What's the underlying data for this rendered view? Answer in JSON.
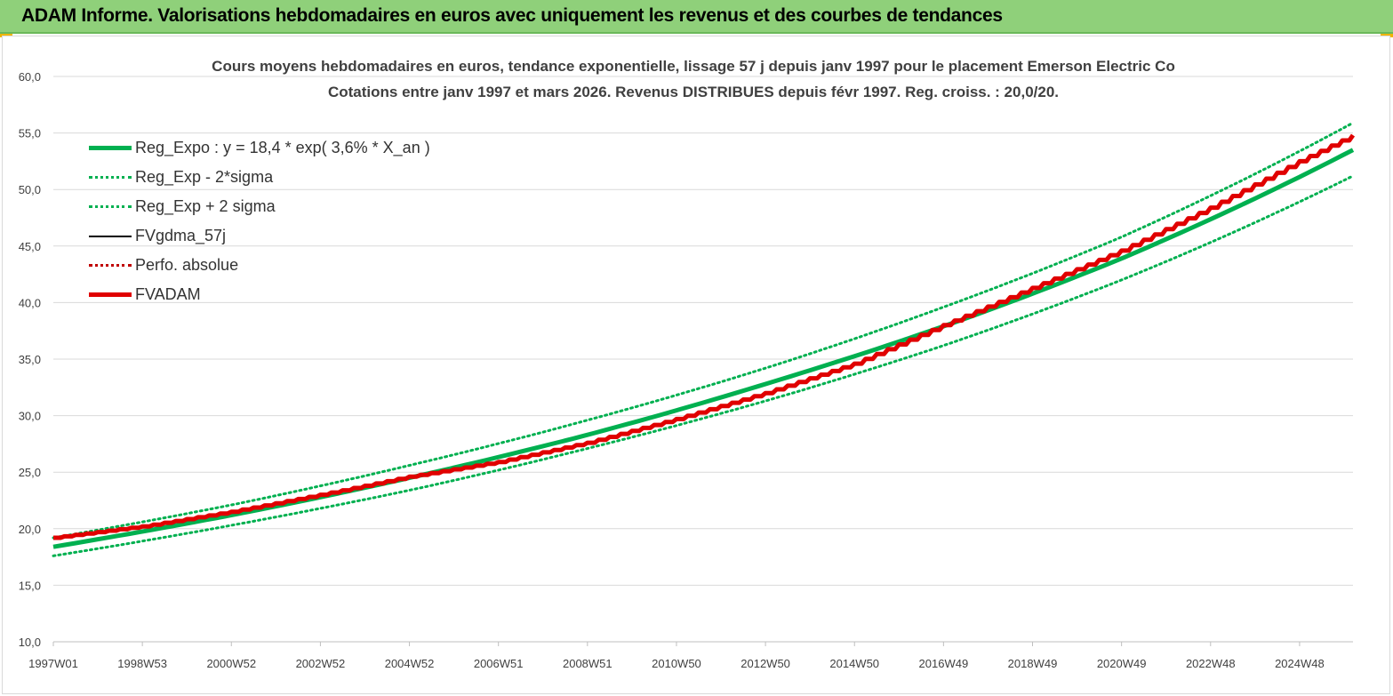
{
  "header": {
    "title": "ADAM Informe. Valorisations hebdomadaires en euros avec uniquement les revenus et des courbes de tendances"
  },
  "chart_data": {
    "type": "line",
    "title_line1": "Cours moyens hebdomadaires en euros, tendance exponentielle, lissage 57 j depuis janv 1997 pour le placement Emerson Electric Co",
    "title_line2": "Cotations entre janv 1997 et mars 2026. Revenus DISTRIBUES depuis févr 1997. Reg. croiss. : 20,0/20.",
    "ylim": [
      10,
      60
    ],
    "y_ticks": [
      "10,0",
      "15,0",
      "20,0",
      "25,0",
      "30,0",
      "35,0",
      "40,0",
      "45,0",
      "50,0",
      "55,0",
      "60,0"
    ],
    "x_range_years": [
      1997.0,
      2026.2
    ],
    "x_ticks": [
      {
        "label": "1997W01",
        "year": 1997.0
      },
      {
        "label": "1998W53",
        "year": 1999.0
      },
      {
        "label": "2000W52",
        "year": 2001.0
      },
      {
        "label": "2002W52",
        "year": 2003.0
      },
      {
        "label": "2004W52",
        "year": 2005.0
      },
      {
        "label": "2006W51",
        "year": 2007.0
      },
      {
        "label": "2008W51",
        "year": 2009.0
      },
      {
        "label": "2010W50",
        "year": 2011.0
      },
      {
        "label": "2012W50",
        "year": 2013.0
      },
      {
        "label": "2014W50",
        "year": 2015.0
      },
      {
        "label": "2016W49",
        "year": 2017.0
      },
      {
        "label": "2018W49",
        "year": 2019.0
      },
      {
        "label": "2020W49",
        "year": 2021.0
      },
      {
        "label": "2022W48",
        "year": 2023.0
      },
      {
        "label": "2024W48",
        "year": 2025.0
      }
    ],
    "grid": "horizontal",
    "legend_position": "top-left",
    "series": [
      {
        "name": "Reg_Expo : y = 18,4 * exp( 3,6% *  X_an )",
        "color": "#00b050",
        "style": "solid-thick",
        "x": [
          1997.0,
          2001.0,
          2005.0,
          2009.0,
          2013.0,
          2017.0,
          2021.0,
          2026.2
        ],
        "y": [
          18.4,
          21.2,
          24.5,
          28.3,
          32.8,
          37.9,
          43.9,
          53.5
        ]
      },
      {
        "name": "Reg_Exp - 2*sigma",
        "color": "#00b050",
        "style": "dotted",
        "x": [
          1997.0,
          2001.0,
          2005.0,
          2009.0,
          2013.0,
          2017.0,
          2021.0,
          2026.2
        ],
        "y": [
          17.6,
          20.3,
          23.4,
          27.1,
          31.3,
          36.2,
          42.0,
          51.2
        ]
      },
      {
        "name": "Reg_Exp + 2 sigma",
        "color": "#00b050",
        "style": "dotted",
        "x": [
          1997.0,
          2001.0,
          2005.0,
          2009.0,
          2013.0,
          2017.0,
          2021.0,
          2026.2
        ],
        "y": [
          19.2,
          22.1,
          25.6,
          29.6,
          34.2,
          39.6,
          45.8,
          55.9
        ]
      },
      {
        "name": "FVgdma_57j",
        "color": "#000000",
        "style": "solid",
        "x": [],
        "y": []
      },
      {
        "name": "Perfo. absolue",
        "color": "#c00000",
        "style": "dotted",
        "x": [],
        "y": []
      },
      {
        "name": "FVADAM",
        "color": "#e00000",
        "style": "solid-thick",
        "x": [
          1997.0,
          1999.0,
          2001.0,
          2003.0,
          2005.0,
          2007.0,
          2009.0,
          2011.0,
          2013.0,
          2015.0,
          2017.0,
          2019.0,
          2021.0,
          2023.0,
          2025.0,
          2026.2
        ],
        "y": [
          19.2,
          20.2,
          21.5,
          23.0,
          24.6,
          25.9,
          27.6,
          29.7,
          32.0,
          34.6,
          38.0,
          41.3,
          44.6,
          48.4,
          52.5,
          54.8
        ]
      }
    ]
  }
}
